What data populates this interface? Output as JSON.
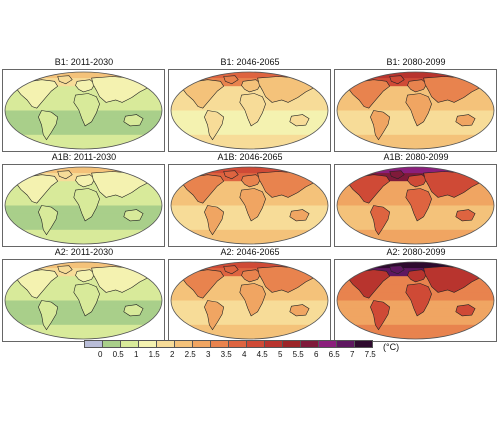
{
  "figure": {
    "panels": [
      {
        "title": "B1: 2011-2030",
        "scenario": "B1",
        "period": "2011-2030",
        "base_class": 1,
        "polar_class": 5,
        "land_boost": 1
      },
      {
        "title": "B1: 2046-2065",
        "scenario": "B1",
        "period": "2046-2065",
        "base_class": 3,
        "polar_class": 8,
        "land_boost": 1
      },
      {
        "title": "B1: 2080-2099",
        "scenario": "B1",
        "period": "2080-2099",
        "base_class": 4,
        "polar_class": 10,
        "land_boost": 2
      },
      {
        "title": "A1B: 2011-2030",
        "scenario": "A1B",
        "period": "2011-2030",
        "base_class": 1,
        "polar_class": 5,
        "land_boost": 1
      },
      {
        "title": "A1B: 2046-2065",
        "scenario": "A1B",
        "period": "2046-2065",
        "base_class": 4,
        "polar_class": 9,
        "land_boost": 2
      },
      {
        "title": "A1B: 2080-2099",
        "scenario": "A1B",
        "period": "2080-2099",
        "base_class": 5,
        "polar_class": 13,
        "land_boost": 3
      },
      {
        "title": "A2: 2011-2030",
        "scenario": "A2",
        "period": "2011-2030",
        "base_class": 1,
        "polar_class": 5,
        "land_boost": 1
      },
      {
        "title": "A2: 2046-2065",
        "scenario": "A2",
        "period": "2046-2065",
        "base_class": 4,
        "polar_class": 9,
        "land_boost": 2
      },
      {
        "title": "A2: 2080-2099",
        "scenario": "A2",
        "period": "2080-2099",
        "base_class": 6,
        "polar_class": 15,
        "land_boost": 3
      }
    ]
  },
  "colorbar": {
    "ticks": [
      "0",
      "0.5",
      "1",
      "1.5",
      "2",
      "2.5",
      "3",
      "3.5",
      "4",
      "4.5",
      "5",
      "5.5",
      "6",
      "6.5",
      "7",
      "7.5"
    ],
    "colors": [
      "#b9bdd8",
      "#a9cf8a",
      "#d8ea9a",
      "#f4f2b0",
      "#f7dc98",
      "#f4c27a",
      "#f0a562",
      "#e8834e",
      "#de6440",
      "#cf4a36",
      "#b8342e",
      "#9c2528",
      "#7f1a3a",
      "#8b1f7c",
      "#5e1760",
      "#2e0a2e"
    ],
    "unit": "(°C)"
  }
}
